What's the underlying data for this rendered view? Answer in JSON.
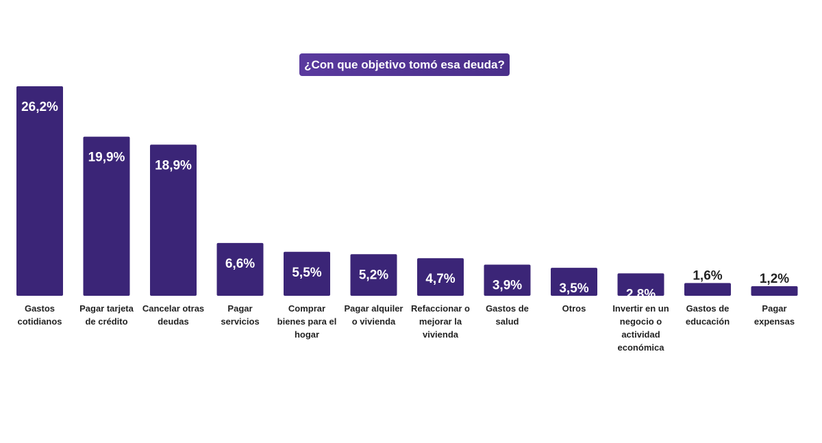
{
  "chart_data": {
    "type": "bar",
    "title": "¿Con que objetivo tomó esa deuda?",
    "xlabel": "",
    "ylabel": "",
    "ylim": [
      0,
      26.2
    ],
    "categories": [
      "Gastos cotidianos",
      "Pagar tarjeta de crédito",
      "Cancelar otras deudas",
      "Pagar servicios",
      "Comprar bienes para el hogar",
      "Pagar alquiler o vivienda",
      "Refaccionar o mejorar la vivienda",
      "Gastos de salud",
      "Otros",
      "Invertir en un negocio o actividad económica",
      "Gastos de educación",
      "Pagar expensas"
    ],
    "values": [
      26.2,
      19.9,
      18.9,
      6.6,
      5.5,
      5.2,
      4.7,
      3.9,
      3.5,
      2.8,
      1.6,
      1.2
    ],
    "value_labels": [
      "26,2%",
      "19,9%",
      "18,9%",
      "6,6%",
      "5,5%",
      "5,2%",
      "4,7%",
      "3,9%",
      "3,5%",
      "2,8%",
      "1,6%",
      "1,2%"
    ],
    "grid": false,
    "legend": "none",
    "colors": {
      "bar": "#3b2577",
      "label_inside": "#ffffff",
      "label_outside": "#222222",
      "title_bg": "#5a3a9e",
      "title_text": "#ffffff"
    }
  }
}
